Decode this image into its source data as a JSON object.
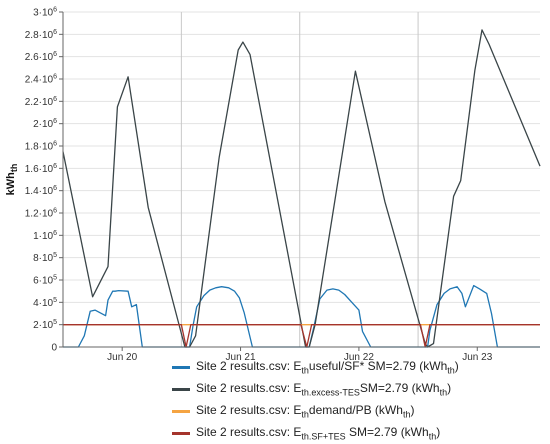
{
  "chart_data": {
    "type": "line",
    "title": "",
    "xlabel": "",
    "ylabel": "kWh",
    "ylabel_sub": "th",
    "xlim": [
      0,
      4.03
    ],
    "ylim": [
      0,
      3000000
    ],
    "y_ticks": [
      0,
      200000,
      400000,
      600000,
      800000,
      1000000,
      1200000,
      1400000,
      1600000,
      1800000,
      2000000,
      2200000,
      2400000,
      2600000,
      2800000,
      3000000
    ],
    "y_tick_labels": [
      {
        "m": "0",
        "e": ""
      },
      {
        "m": "2·10",
        "e": "5"
      },
      {
        "m": "4·10",
        "e": "5"
      },
      {
        "m": "6·10",
        "e": "5"
      },
      {
        "m": "8·10",
        "e": "5"
      },
      {
        "m": "1·10",
        "e": "6"
      },
      {
        "m": "1.2·10",
        "e": "6"
      },
      {
        "m": "1.4·10",
        "e": "6"
      },
      {
        "m": "1.6·10",
        "e": "6"
      },
      {
        "m": "1.8·10",
        "e": "6"
      },
      {
        "m": "2·10",
        "e": "6"
      },
      {
        "m": "2.2·10",
        "e": "6"
      },
      {
        "m": "2.4·10",
        "e": "6"
      },
      {
        "m": "2.6·10",
        "e": "6"
      },
      {
        "m": "2.8·10",
        "e": "6"
      },
      {
        "m": "3·10",
        "e": "6"
      }
    ],
    "x_ticks": [
      0.5,
      1.5,
      2.5,
      3.5
    ],
    "x_tick_labels": [
      "Jun 20",
      "Jun 21",
      "Jun 22",
      "Jun 23"
    ],
    "day_boundaries": [
      1,
      2,
      3
    ],
    "grid": true,
    "legend_position": "bottom",
    "series": [
      {
        "name_parts": [
          [
            "Site 2 results.csv: E",
            ""
          ],
          [
            "th",
            "sub"
          ],
          [
            "useful/SF*  SM=2.79 (kWh",
            ""
          ],
          [
            "th",
            "sub"
          ],
          [
            ")",
            ""
          ]
        ],
        "color": "#1f77b4",
        "x": [
          0,
          0.13,
          0.18,
          0.23,
          0.27,
          0.36,
          0.38,
          0.42,
          0.44,
          0.47,
          0.55,
          0.58,
          0.62,
          0.67,
          1.01,
          1.07,
          1.1,
          1.13,
          1.19,
          1.24,
          1.29,
          1.34,
          1.4,
          1.45,
          1.49,
          1.53,
          1.6,
          2.02,
          2.08,
          2.12,
          2.17,
          2.23,
          2.28,
          2.33,
          2.38,
          2.44,
          2.5,
          2.53,
          2.6,
          3.03,
          3.08,
          3.1,
          3.16,
          3.22,
          3.27,
          3.33,
          3.37,
          3.4,
          3.47,
          3.52,
          3.58,
          3.62,
          3.67,
          4.03
        ],
        "y": [
          0,
          0,
          100000,
          320000,
          330000,
          280000,
          420000,
          500000,
          500000,
          505000,
          500000,
          360000,
          380000,
          0,
          0,
          0,
          200000,
          360000,
          460000,
          510000,
          530000,
          540000,
          530000,
          500000,
          440000,
          310000,
          0,
          0,
          0,
          180000,
          430000,
          510000,
          520000,
          510000,
          470000,
          400000,
          330000,
          140000,
          0,
          0,
          0,
          150000,
          380000,
          480000,
          520000,
          540000,
          480000,
          360000,
          550000,
          520000,
          480000,
          300000,
          0,
          0
        ]
      },
      {
        "name_parts": [
          [
            "Site 2 results.csv: E",
            ""
          ],
          [
            "th.excess-TES",
            "sub"
          ],
          [
            "SM=2.79 (kWh",
            ""
          ],
          [
            "th",
            "sub"
          ],
          [
            ")",
            ""
          ]
        ],
        "color": "#3a4548",
        "x": [
          0,
          0.25,
          0.38,
          0.46,
          0.55,
          0.72,
          1.03,
          1.07,
          1.12,
          1.32,
          1.48,
          1.52,
          1.58,
          2.05,
          2.08,
          2.13,
          2.28,
          2.47,
          2.72,
          3.06,
          3.08,
          3.13,
          3.3,
          3.36,
          3.48,
          3.54,
          3.6,
          4.03
        ],
        "y": [
          1750000,
          450000,
          720000,
          2150000,
          2420000,
          1250000,
          0,
          0,
          100000,
          1700000,
          2660000,
          2730000,
          2620000,
          0,
          0,
          200000,
          1200000,
          2470000,
          1300000,
          30000,
          0,
          30000,
          1350000,
          1490000,
          2480000,
          2840000,
          2710000,
          1620000
        ]
      },
      {
        "name_parts": [
          [
            "Site 2 results.csv: E",
            ""
          ],
          [
            "th",
            "sub"
          ],
          [
            "demand/PB (kWh",
            ""
          ],
          [
            "th",
            "sub"
          ],
          [
            ")",
            ""
          ]
        ],
        "color": "#f5a442",
        "x": [
          0,
          4.03
        ],
        "y": [
          200000,
          200000
        ]
      },
      {
        "name_parts": [
          [
            "Site 2 results.csv: E",
            ""
          ],
          [
            "th.SF+TES",
            "sub"
          ],
          [
            " SM=2.79 (kWh",
            ""
          ],
          [
            "th",
            "sub"
          ],
          [
            ")",
            ""
          ]
        ],
        "color": "#a5342c",
        "x": [
          0,
          1.0,
          1.04,
          1.08,
          2.01,
          2.06,
          2.1,
          3.02,
          3.06,
          3.1,
          4.03
        ],
        "y": [
          200000,
          200000,
          0,
          200000,
          200000,
          0,
          200000,
          200000,
          0,
          200000,
          200000
        ]
      }
    ]
  }
}
